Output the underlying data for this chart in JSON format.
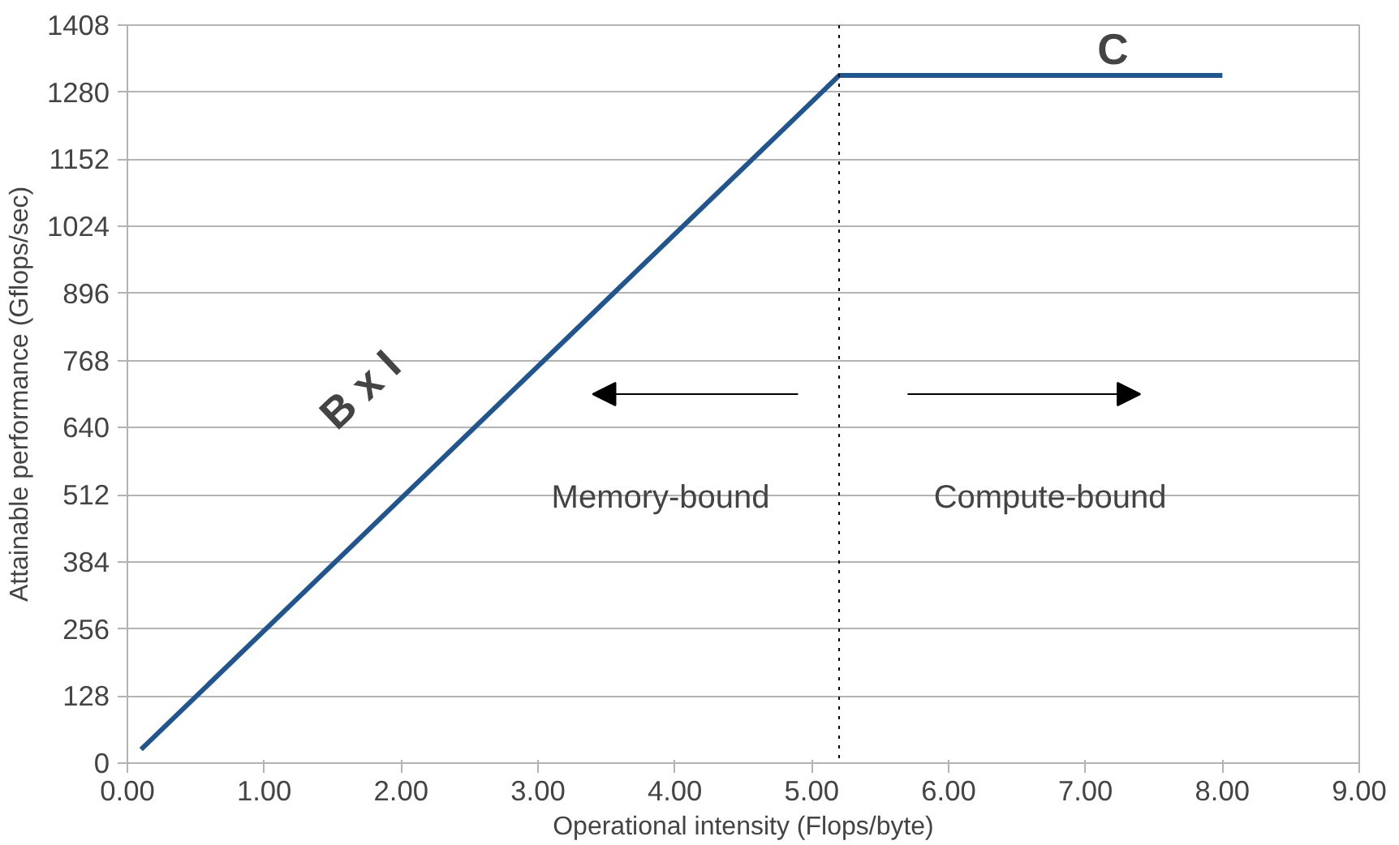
{
  "chart_data": {
    "type": "line",
    "xlabel": "Operational intensity (Flops/byte)",
    "ylabel": "Attainable performance (Gflops/sec)",
    "x": [
      0.1,
      5.2,
      8.0
    ],
    "series": [
      {
        "color": "#1f5591",
        "values": [
          26,
          1312,
          1312
        ]
      }
    ],
    "xlim": [
      0,
      9
    ],
    "ylim": [
      0,
      1408
    ],
    "xticks": [
      {
        "value": 0,
        "label": "0.00"
      },
      {
        "value": 1,
        "label": "1.00"
      },
      {
        "value": 2,
        "label": "2.00"
      },
      {
        "value": 3,
        "label": "3.00"
      },
      {
        "value": 4,
        "label": "4.00"
      },
      {
        "value": 5,
        "label": "5.00"
      },
      {
        "value": 6,
        "label": "6.00"
      },
      {
        "value": 7,
        "label": "7.00"
      },
      {
        "value": 8,
        "label": "8.00"
      },
      {
        "value": 9,
        "label": "9.00"
      }
    ],
    "yticks": [
      0,
      128,
      256,
      384,
      512,
      640,
      768,
      896,
      1024,
      1152,
      1280,
      1408
    ],
    "grid": "y",
    "ref_lines": [
      {
        "axis": "x",
        "value": 5.2,
        "color": "#000000",
        "line_style": "dotted"
      }
    ],
    "annotations": [
      "B x I",
      "C",
      "Memory-bound",
      "Compute-bound"
    ]
  }
}
